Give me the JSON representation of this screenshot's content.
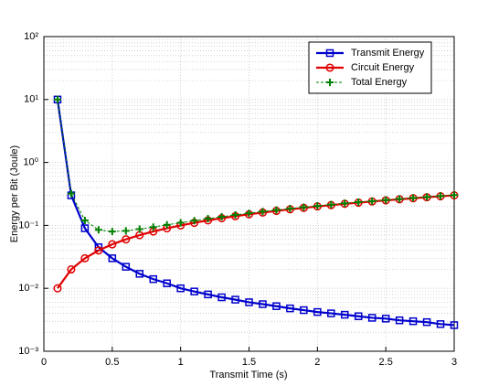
{
  "chart_data": {
    "type": "line",
    "xlabel": "Transmit Time (s)",
    "ylabel": "Energy per Bit (Joule)",
    "x": [
      0.1,
      0.2,
      0.3,
      0.4,
      0.5,
      0.6,
      0.7,
      0.8,
      0.9,
      1.0,
      1.1,
      1.2,
      1.3,
      1.4,
      1.5,
      1.6,
      1.7,
      1.8,
      1.9,
      2.0,
      2.1,
      2.2,
      2.3,
      2.4,
      2.5,
      2.6,
      2.7,
      2.8,
      2.9,
      3.0
    ],
    "series": [
      {
        "name": "Transmit Energy",
        "color": "#0000cc",
        "marker": "square",
        "dashed": false,
        "values": [
          10,
          0.3,
          0.09,
          0.045,
          0.03,
          0.022,
          0.017,
          0.014,
          0.012,
          0.01,
          0.0089,
          0.008,
          0.0072,
          0.0066,
          0.006,
          0.0056,
          0.0052,
          0.0048,
          0.0045,
          0.0042,
          0.004,
          0.0038,
          0.0036,
          0.0034,
          0.0033,
          0.0031,
          0.003,
          0.0029,
          0.0027,
          0.0026
        ]
      },
      {
        "name": "Circuit Energy",
        "color": "#e00000",
        "marker": "circle",
        "dashed": false,
        "values": [
          0.01,
          0.02,
          0.03,
          0.04,
          0.05,
          0.06,
          0.07,
          0.08,
          0.09,
          0.1,
          0.11,
          0.12,
          0.13,
          0.14,
          0.15,
          0.16,
          0.17,
          0.18,
          0.19,
          0.2,
          0.21,
          0.22,
          0.23,
          0.24,
          0.25,
          0.26,
          0.27,
          0.28,
          0.29,
          0.3
        ]
      },
      {
        "name": "Total Energy",
        "color": "#008000",
        "marker": "plus",
        "dashed": true,
        "values": [
          10.01,
          0.32,
          0.12,
          0.085,
          0.08,
          0.082,
          0.087,
          0.094,
          0.102,
          0.11,
          0.119,
          0.128,
          0.137,
          0.147,
          0.156,
          0.166,
          0.175,
          0.185,
          0.195,
          0.204,
          0.214,
          0.224,
          0.234,
          0.243,
          0.253,
          0.263,
          0.273,
          0.283,
          0.293,
          0.303
        ]
      }
    ],
    "xlim": [
      0,
      3
    ],
    "xticks": [
      0,
      0.5,
      1,
      1.5,
      2,
      2.5,
      3
    ],
    "ylim": [
      0.001,
      100
    ],
    "ylog": true,
    "yticks": [
      {
        "value": 0.001,
        "label": "10⁻³"
      },
      {
        "value": 0.01,
        "label": "10⁻²"
      },
      {
        "value": 0.1,
        "label": "10⁻¹"
      },
      {
        "value": 1,
        "label": "10⁰"
      },
      {
        "value": 10,
        "label": "10¹"
      },
      {
        "value": 100,
        "label": "10²"
      }
    ],
    "grid": true,
    "legend": "upper right"
  }
}
